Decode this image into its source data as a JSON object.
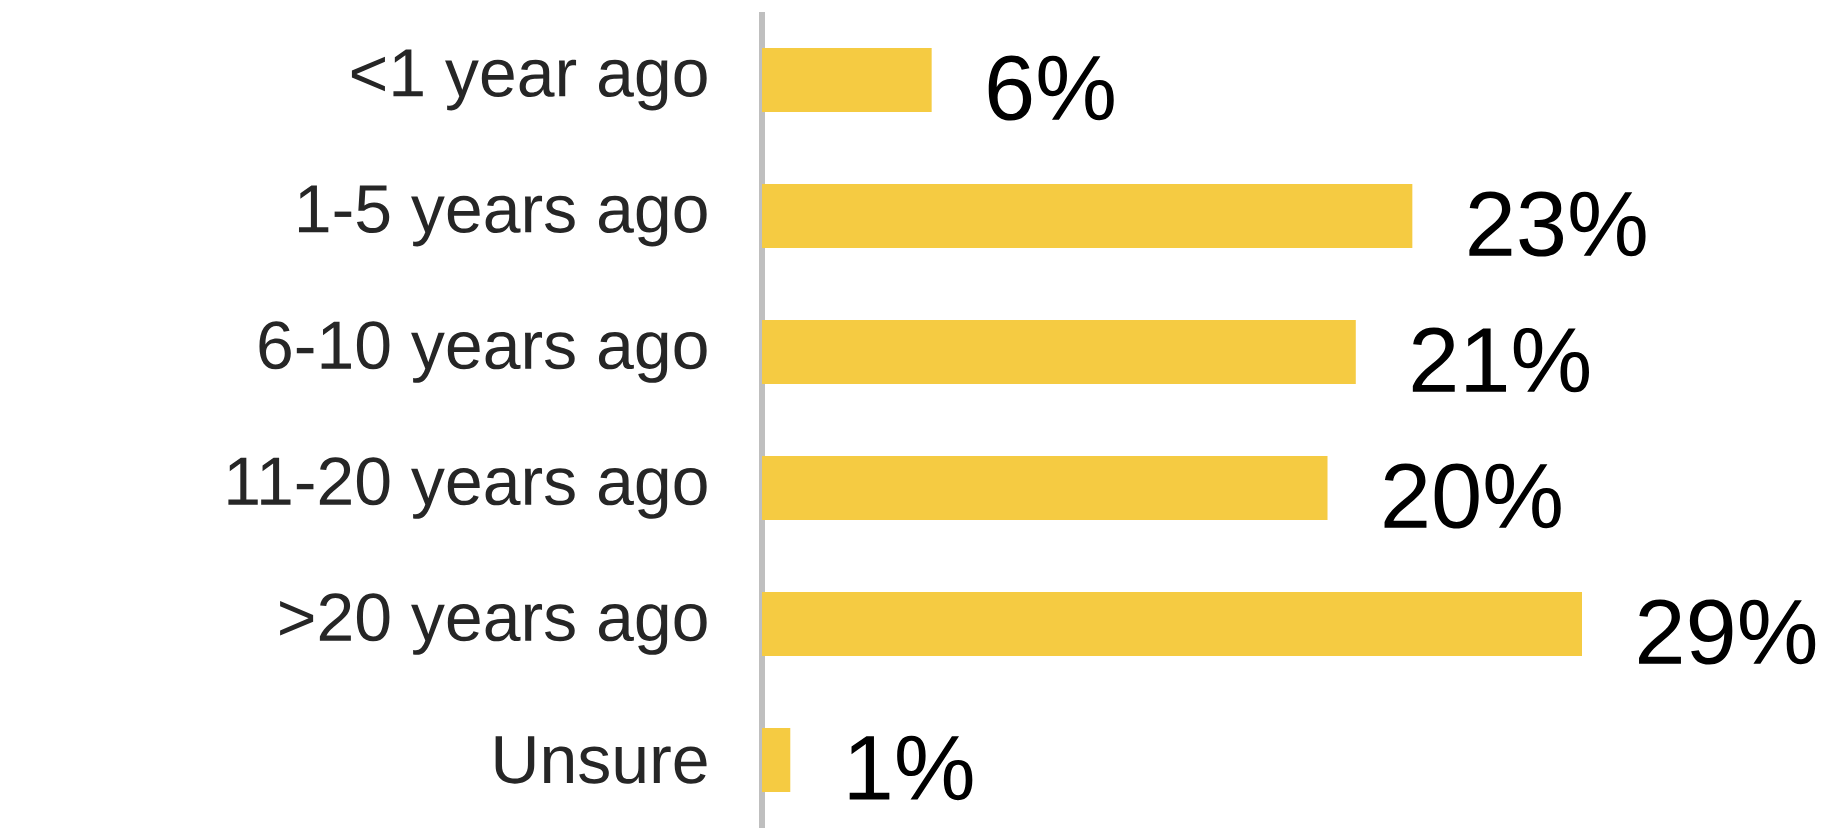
{
  "chart_data": {
    "type": "bar",
    "orientation": "horizontal",
    "categories": [
      "<1 year ago",
      "1-5 years ago",
      "6-10 years ago",
      "11-20 years ago",
      ">20 years ago",
      "Unsure"
    ],
    "values": [
      6,
      23,
      21,
      20,
      29,
      1
    ],
    "value_labels": [
      "6%",
      "23%",
      "21%",
      "20%",
      "29%",
      "1%"
    ],
    "color": "#f5cb42"
  }
}
